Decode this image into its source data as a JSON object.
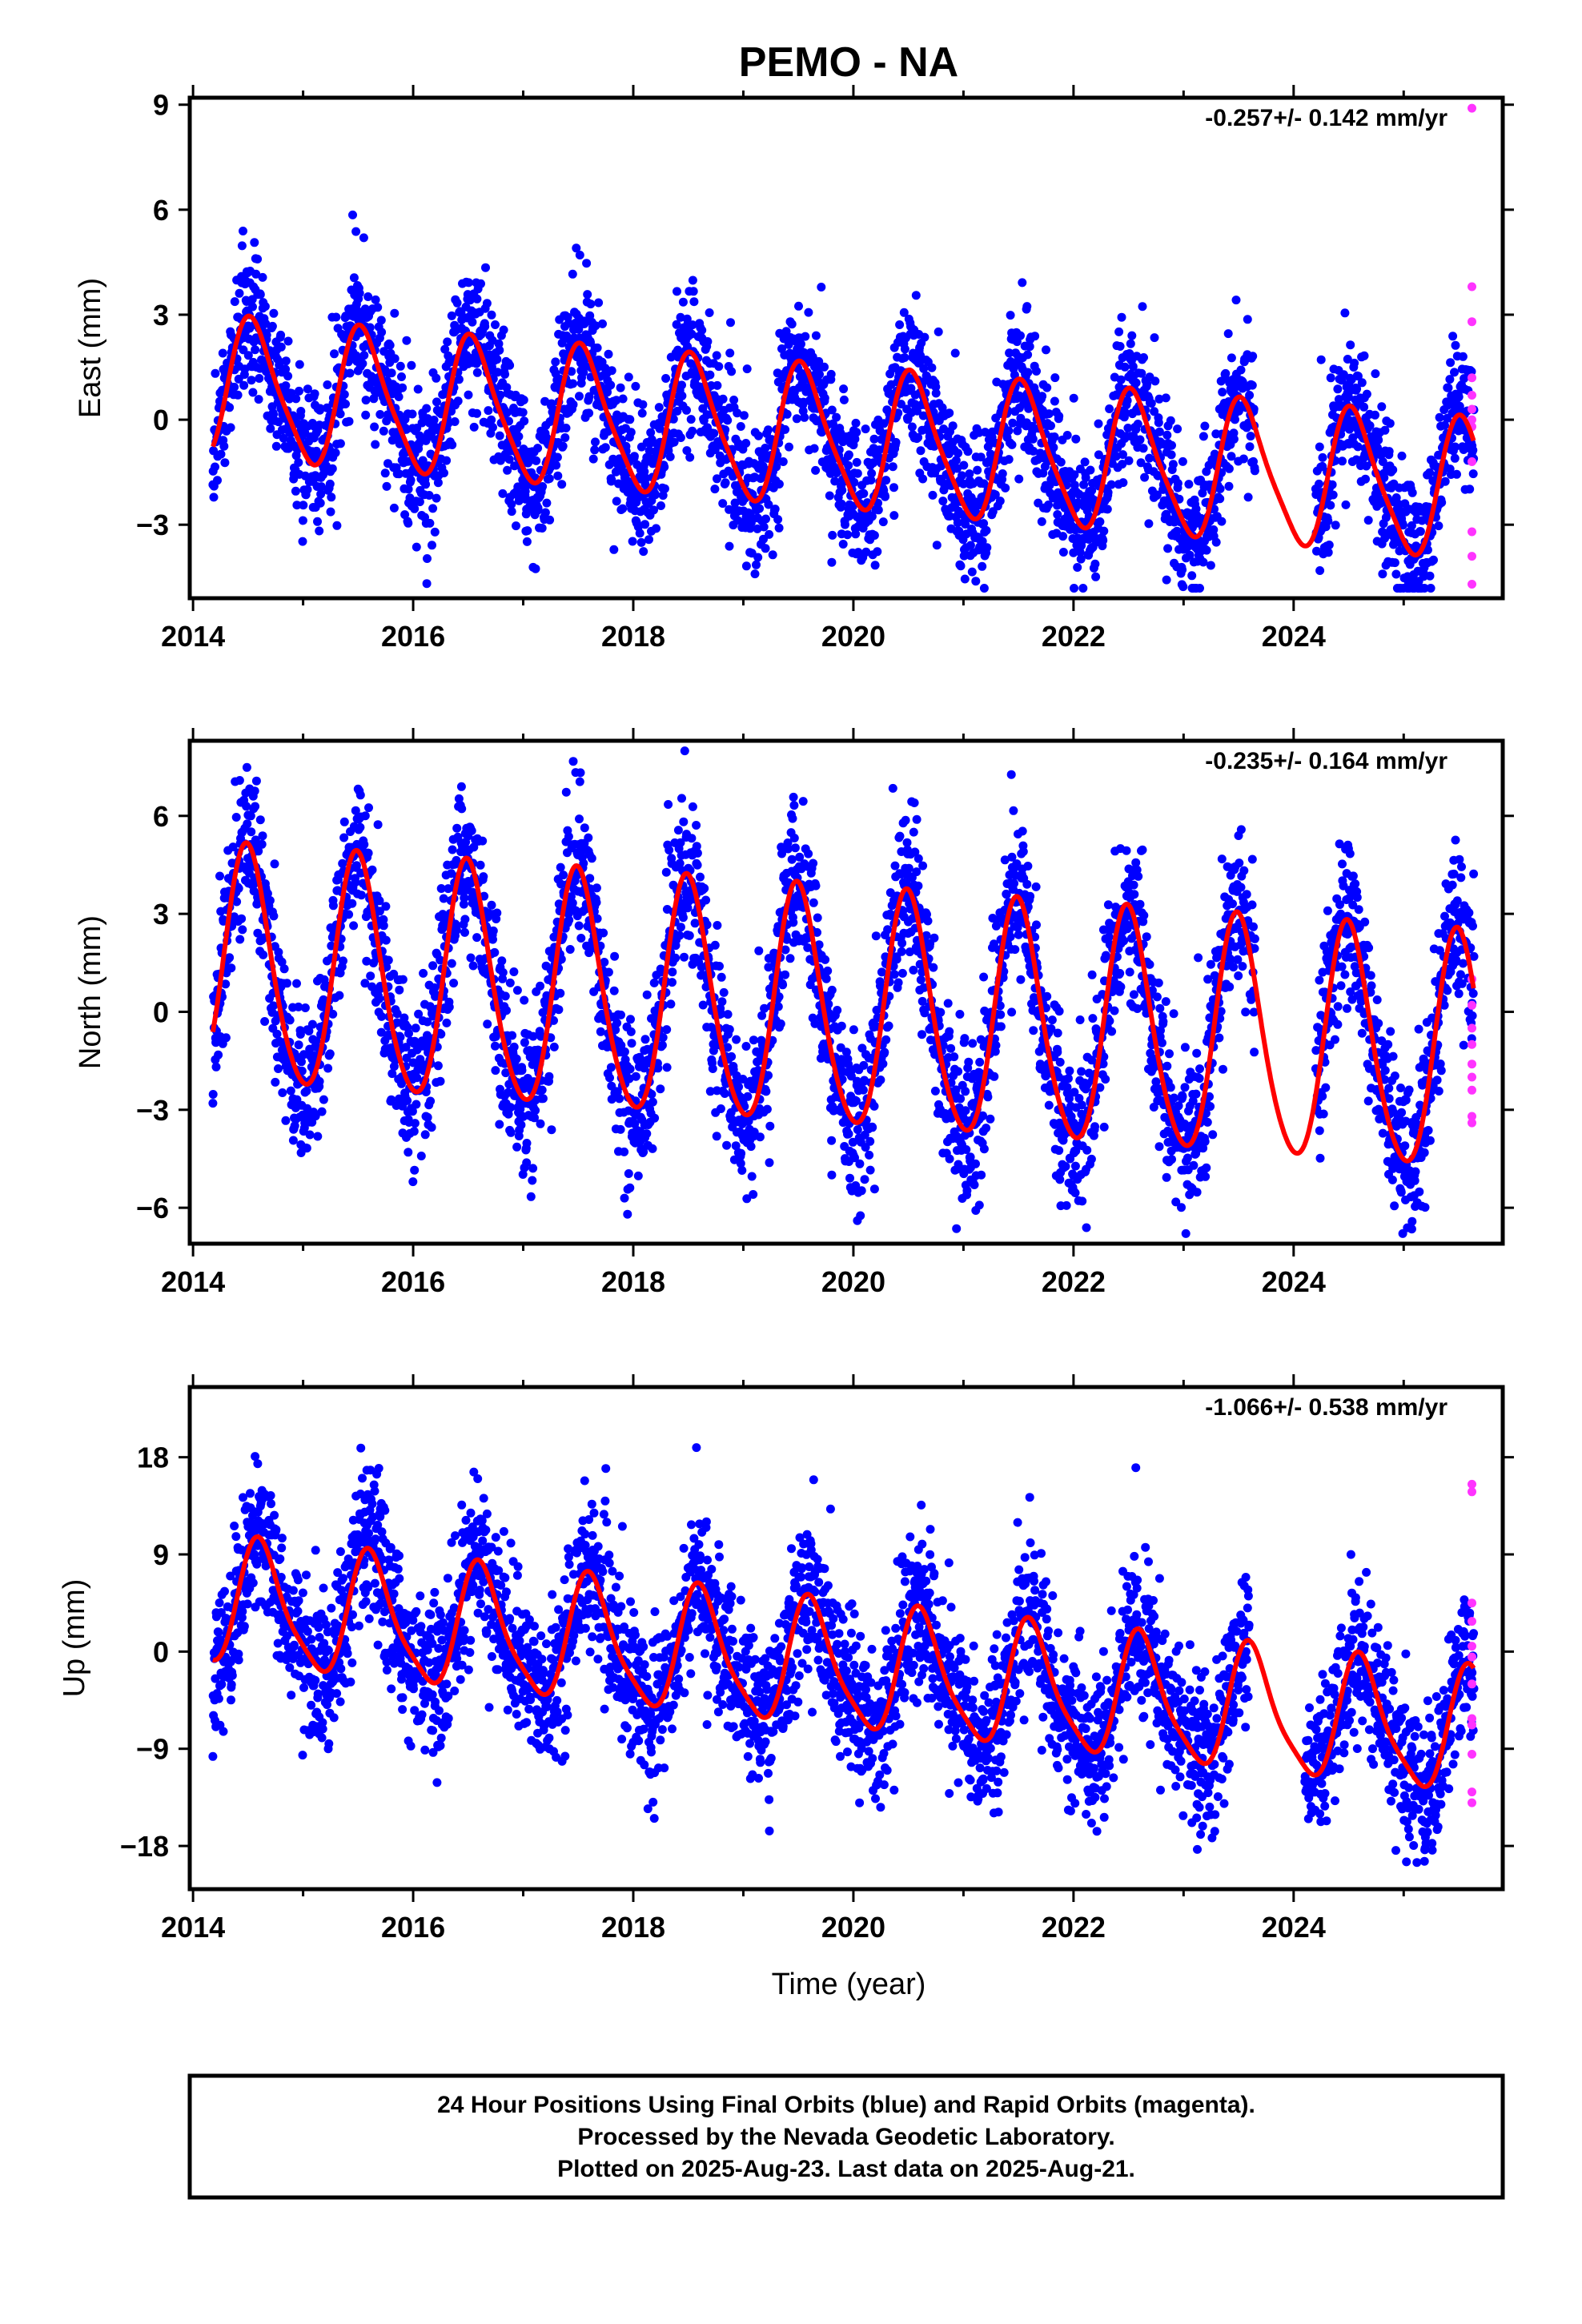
{
  "title": "PEMO - NA",
  "xlabel": "Time (year)",
  "x_tick_labels": [
    "2014",
    "2016",
    "2018",
    "2020",
    "2022",
    "2024"
  ],
  "colors": {
    "final": "#0000ff",
    "rapid": "#ff33ff",
    "fit": "#ff0000"
  },
  "footer": {
    "line1": "24 Hour Positions Using Final Orbits (blue) and Rapid Orbits (magenta).",
    "line2": "Processed by the Nevada Geodetic Laboratory.",
    "line3": "Plotted on 2025-Aug-23. Last data on 2025-Aug-21."
  },
  "chart_data": [
    {
      "type": "scatter",
      "ylabel": "East (mm)",
      "rate": "-0.257+/- 0.142 mm/yr",
      "xlim": [
        2013.97,
        2025.9
      ],
      "ylim": [
        -5.1,
        9.2
      ],
      "yticks": [
        -3,
        0,
        3,
        6,
        9
      ],
      "ytick_labels": [
        "−3",
        "0",
        "3",
        "6",
        "9"
      ],
      "data_start": 2014.18,
      "data_end": 2025.64,
      "gaps": [
        [
          2023.65,
          2024.2
        ]
      ],
      "fit": {
        "offset": 0.9,
        "trend": -0.257,
        "annual": 1.95,
        "annual_phase": 2014.55,
        "semiannual": 0.35,
        "semiannual_phase": 2014.45
      },
      "noise": 1.0,
      "rapid_points": [
        [
          2025.62,
          8.9
        ],
        [
          2025.62,
          3.8
        ],
        [
          2025.62,
          2.8
        ],
        [
          2025.62,
          1.2
        ],
        [
          2025.62,
          0.7
        ],
        [
          2025.62,
          0.3
        ],
        [
          2025.62,
          0.0
        ],
        [
          2025.62,
          -0.2
        ],
        [
          2025.62,
          -1.2
        ],
        [
          2025.62,
          -3.2
        ],
        [
          2025.62,
          -3.9
        ],
        [
          2025.62,
          -4.7
        ]
      ]
    },
    {
      "type": "scatter",
      "ylabel": "North (mm)",
      "rate": "-0.235+/- 0.164 mm/yr",
      "xlim": [
        2013.97,
        2025.9
      ],
      "ylim": [
        -7.1,
        8.3
      ],
      "yticks": [
        -6,
        -3,
        0,
        3,
        6
      ],
      "ytick_labels": [
        "−6",
        "−3",
        "0",
        "3",
        "6"
      ],
      "data_start": 2014.18,
      "data_end": 2025.64,
      "gaps": [
        [
          2023.65,
          2024.2
        ]
      ],
      "fit": {
        "offset": 1.3,
        "trend": -0.235,
        "annual": 3.6,
        "annual_phase": 2014.5,
        "semiannual": 0.4,
        "semiannual_phase": 2014.45
      },
      "noise": 1.2,
      "rapid_points": [
        [
          2025.62,
          1.0
        ],
        [
          2025.62,
          0.2
        ],
        [
          2025.62,
          -0.5
        ],
        [
          2025.62,
          -1.0
        ],
        [
          2025.62,
          -1.6
        ],
        [
          2025.62,
          -2.0
        ],
        [
          2025.62,
          -2.4
        ],
        [
          2025.62,
          -3.2
        ],
        [
          2025.62,
          -3.4
        ]
      ]
    },
    {
      "type": "scatter",
      "ylabel": "Up (mm)",
      "rate": "-1.066+/- 0.538 mm/yr",
      "xlim": [
        2013.97,
        2025.9
      ],
      "ylim": [
        -22,
        24.5
      ],
      "yticks": [
        -18,
        -9,
        0,
        9,
        18
      ],
      "ytick_labels": [
        "−18",
        "−9",
        "0",
        "9",
        "18"
      ],
      "data_start": 2014.18,
      "data_end": 2025.64,
      "gaps": [
        [
          2023.6,
          2024.1
        ]
      ],
      "fit": {
        "offset": 4.5,
        "trend": -1.066,
        "annual": 5.6,
        "annual_phase": 2014.62,
        "semiannual": 1.2,
        "semiannual_phase": 2014.55
      },
      "noise": 3.5,
      "rapid_points": [
        [
          2025.62,
          15.5
        ],
        [
          2025.62,
          14.8
        ],
        [
          2025.62,
          4.5
        ],
        [
          2025.62,
          2.8
        ],
        [
          2025.62,
          0.5
        ],
        [
          2025.62,
          -0.5
        ],
        [
          2025.62,
          -3.0
        ],
        [
          2025.62,
          -6.2
        ],
        [
          2025.62,
          -6.8
        ],
        [
          2025.62,
          -9.5
        ],
        [
          2025.62,
          -13.0
        ],
        [
          2025.62,
          -14.0
        ]
      ]
    }
  ]
}
